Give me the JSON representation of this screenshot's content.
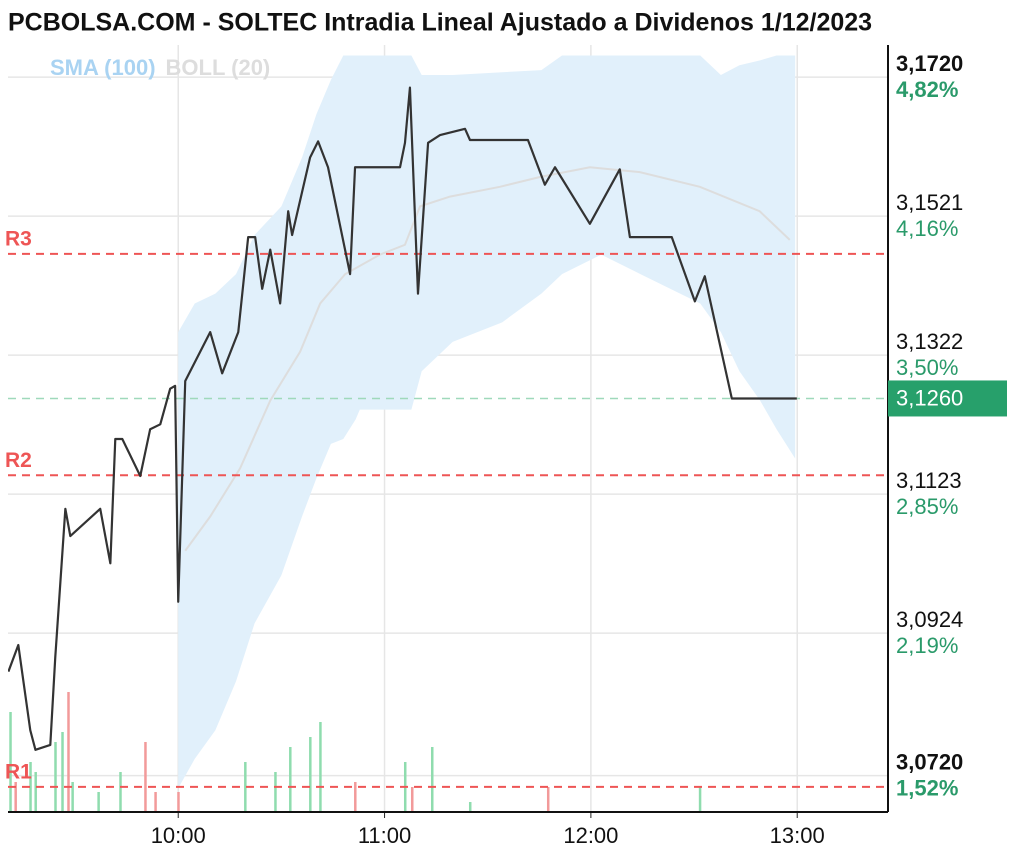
{
  "chart_data": {
    "type": "line",
    "title": "PCBOLSA.COM - SOLTEC Intradia Lineal Ajustado a Dividenos 1/12/2023",
    "color": "#333333",
    "x": [
      9.177,
      9.225,
      9.283,
      9.308,
      9.38,
      9.404,
      9.453,
      9.477,
      9.622,
      9.671,
      9.695,
      9.729,
      9.816,
      9.864,
      9.913,
      9.961,
      9.985,
      10.0,
      10.034,
      10.155,
      10.213,
      10.291,
      10.339,
      10.373,
      10.407,
      10.446,
      10.494,
      10.533,
      10.552,
      10.639,
      10.678,
      10.726,
      10.833,
      10.857,
      11.075,
      11.099,
      11.123,
      11.162,
      11.211,
      11.269,
      11.39,
      11.414,
      11.695,
      11.777,
      11.826,
      11.995,
      12.14,
      12.189,
      12.392,
      12.504,
      12.552,
      12.683,
      12.998
    ],
    "values": [
      3.0869,
      3.0907,
      3.0785,
      3.0757,
      3.0764,
      3.0889,
      3.1102,
      3.1063,
      3.1102,
      3.1024,
      3.1202,
      3.1202,
      3.1149,
      3.1216,
      3.1223,
      3.1274,
      3.1278,
      3.0969,
      3.1285,
      3.1355,
      3.1296,
      3.1355,
      3.1491,
      3.1491,
      3.1417,
      3.1473,
      3.1396,
      3.1528,
      3.1494,
      3.1605,
      3.1628,
      3.1591,
      3.1438,
      3.1591,
      3.1591,
      3.1626,
      3.1705,
      3.141,
      3.1626,
      3.1637,
      3.1646,
      3.163,
      3.163,
      3.1566,
      3.1591,
      3.151,
      3.1588,
      3.1491,
      3.1491,
      3.1399,
      3.1435,
      3.126,
      3.126
    ],
    "sma": {
      "name": "SMA (100)",
      "color": "#a9d3f2",
      "x": [
        10.034,
        10.155,
        10.3,
        10.446,
        10.591,
        10.688,
        10.809,
        10.978,
        11.099,
        11.172,
        11.317,
        11.559,
        11.753,
        11.995,
        12.237,
        12.528,
        12.818,
        12.964
      ],
      "values": [
        3.1042,
        3.1091,
        3.116,
        3.1257,
        3.1327,
        3.1396,
        3.1438,
        3.1466,
        3.148,
        3.1535,
        3.1549,
        3.1563,
        3.1577,
        3.1591,
        3.1584,
        3.1563,
        3.1528,
        3.1487
      ]
    },
    "bollinger": {
      "name": "BOLL (20)",
      "color": "#dddddd",
      "fill": "#e1f0fb",
      "x": [
        10.0,
        10.08,
        10.18,
        10.28,
        10.37,
        10.5,
        10.6,
        10.67,
        10.74,
        10.8,
        10.86,
        10.88,
        11.13,
        11.18,
        11.33,
        11.57,
        11.76,
        11.86,
        12.05,
        12.24,
        12.53,
        12.63,
        12.72,
        12.82,
        12.9,
        12.99
      ],
      "upper": [
        3.1355,
        3.1396,
        3.141,
        3.1438,
        3.1494,
        3.1535,
        3.1605,
        3.1667,
        3.1716,
        3.1751,
        3.1751,
        3.1751,
        3.1751,
        3.1723,
        3.1723,
        3.1727,
        3.173,
        3.1751,
        3.1751,
        3.1751,
        3.1751,
        3.1723,
        3.1737,
        3.1744,
        3.1751,
        3.1751
      ],
      "lower": [
        3.0702,
        3.0744,
        3.0785,
        3.0855,
        3.0938,
        3.1007,
        3.1091,
        3.1146,
        3.1195,
        3.1202,
        3.123,
        3.1244,
        3.1244,
        3.1299,
        3.1341,
        3.1369,
        3.141,
        3.1438,
        3.1466,
        3.1438,
        3.1396,
        3.1355,
        3.1299,
        3.1257,
        3.1216,
        3.1174
      ]
    },
    "volume": {
      "vlim": [
        0,
        150
      ],
      "x": [
        9.186,
        9.211,
        9.283,
        9.308,
        9.404,
        9.438,
        9.467,
        9.487,
        9.613,
        9.719,
        9.84,
        9.889,
        10.0,
        10.324,
        10.47,
        10.542,
        10.639,
        10.688,
        10.857,
        11.099,
        11.133,
        11.23,
        11.414,
        11.792,
        12.528
      ],
      "values": [
        100,
        30,
        50,
        40,
        70,
        80,
        120,
        30,
        20,
        40,
        70,
        20,
        20,
        50,
        40,
        65,
        75,
        90,
        30,
        50,
        25,
        65,
        10,
        25,
        25
      ],
      "colors": [
        "#8fdcae",
        "#f29a9a",
        "#8fdcae",
        "#8fdcae",
        "#8fdcae",
        "#8fdcae",
        "#f29a9a",
        "#8fdcae",
        "#8fdcae",
        "#8fdcae",
        "#f29a9a",
        "#f29a9a",
        "#f29a9a",
        "#8fdcae",
        "#8fdcae",
        "#8fdcae",
        "#8fdcae",
        "#8fdcae",
        "#f29a9a",
        "#8fdcae",
        "#f29a9a",
        "#8fdcae",
        "#8fdcae",
        "#f29a9a",
        "#8fdcae"
      ]
    },
    "levels": [
      {
        "label": "R3",
        "value": 3.1467
      },
      {
        "label": "R2",
        "value": 3.115
      },
      {
        "label": "R1",
        "value": 3.0704
      }
    ],
    "level_color": "#ee5555",
    "last_price": {
      "value": 3.126,
      "label": "3,1260",
      "color": "#27a06b"
    },
    "xlim": [
      9.175,
      13.44
    ],
    "xticks": [
      {
        "value": 10,
        "label": "10:00"
      },
      {
        "value": 11,
        "label": "11:00"
      },
      {
        "value": 12,
        "label": "12:00"
      },
      {
        "value": 13,
        "label": "13:00"
      }
    ],
    "ylim": [
      3.0668,
      3.1766
    ],
    "yticks": [
      {
        "value": 3.172,
        "label": "3,1720"
      },
      {
        "value": 3.1521,
        "label": "3,1521"
      },
      {
        "value": 3.1322,
        "label": "3,1322"
      },
      {
        "value": 3.1123,
        "label": "3,1123"
      },
      {
        "value": 3.0924,
        "label": "3,0924"
      },
      {
        "value": 3.072,
        "label": "3,0720"
      }
    ],
    "ytick_percent": [
      "4,82%",
      "4,16%",
      "3,50%",
      "2,85%",
      "2,19%",
      "1,52%"
    ],
    "bold_ticks": [
      0,
      5
    ],
    "percent_color": "#2a9a6a",
    "grid": true
  }
}
